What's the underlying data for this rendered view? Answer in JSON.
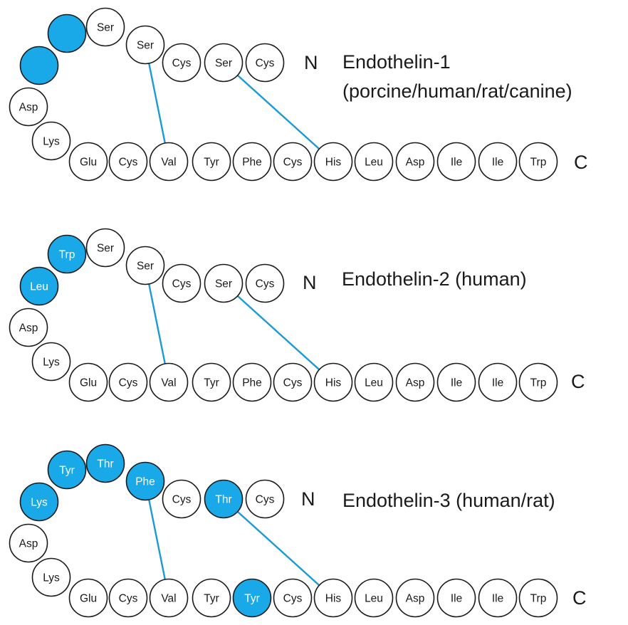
{
  "colors": {
    "highlight": "#19a8e8",
    "normal_fill": "#ffffff",
    "outline": "#1a1a1a",
    "disulfide_bond": "#1b9ad6",
    "text_on_highlight": "#ffffff",
    "text_normal": "#1a1a1a"
  },
  "peptides": [
    {
      "title_lines": [
        "Endothelin-1",
        "(porcine/human/rat/canine)"
      ],
      "n_terminus": "N",
      "c_terminus": "C",
      "residues": [
        {
          "label": "Cys",
          "highlight": false
        },
        {
          "label": "Ser",
          "highlight": false
        },
        {
          "label": "Cys",
          "highlight": false
        },
        {
          "label": "Ser",
          "highlight": false
        },
        {
          "label": "Ser",
          "highlight": false
        },
        {
          "label": "",
          "highlight": true
        },
        {
          "label": "",
          "highlight": true
        },
        {
          "label": "Asp",
          "highlight": false
        },
        {
          "label": "Lys",
          "highlight": false
        },
        {
          "label": "Glu",
          "highlight": false
        },
        {
          "label": "Cys",
          "highlight": false
        },
        {
          "label": "Val",
          "highlight": false
        },
        {
          "label": "Tyr",
          "highlight": false
        },
        {
          "label": "Phe",
          "highlight": false
        },
        {
          "label": "Cys",
          "highlight": false
        },
        {
          "label": "His",
          "highlight": false
        },
        {
          "label": "Leu",
          "highlight": false
        },
        {
          "label": "Asp",
          "highlight": false
        },
        {
          "label": "Ile",
          "highlight": false
        },
        {
          "label": "Ile",
          "highlight": false
        },
        {
          "label": "Trp",
          "highlight": false
        }
      ],
      "disulfide_bonds": [
        [
          1,
          15
        ],
        [
          3,
          11
        ]
      ]
    },
    {
      "title_lines": [
        "Endothelin-2 (human)"
      ],
      "n_terminus": "N",
      "c_terminus": "C",
      "residues": [
        {
          "label": "Cys",
          "highlight": false
        },
        {
          "label": "Ser",
          "highlight": false
        },
        {
          "label": "Cys",
          "highlight": false
        },
        {
          "label": "Ser",
          "highlight": false
        },
        {
          "label": "Ser",
          "highlight": false
        },
        {
          "label": "Trp",
          "highlight": true
        },
        {
          "label": "Leu",
          "highlight": true
        },
        {
          "label": "Asp",
          "highlight": false
        },
        {
          "label": "Lys",
          "highlight": false
        },
        {
          "label": "Glu",
          "highlight": false
        },
        {
          "label": "Cys",
          "highlight": false
        },
        {
          "label": "Val",
          "highlight": false
        },
        {
          "label": "Tyr",
          "highlight": false
        },
        {
          "label": "Phe",
          "highlight": false
        },
        {
          "label": "Cys",
          "highlight": false
        },
        {
          "label": "His",
          "highlight": false
        },
        {
          "label": "Leu",
          "highlight": false
        },
        {
          "label": "Asp",
          "highlight": false
        },
        {
          "label": "Ile",
          "highlight": false
        },
        {
          "label": "Ile",
          "highlight": false
        },
        {
          "label": "Trp",
          "highlight": false
        }
      ],
      "disulfide_bonds": [
        [
          1,
          15
        ],
        [
          3,
          11
        ]
      ]
    },
    {
      "title_lines": [
        "Endothelin-3 (human/rat)"
      ],
      "n_terminus": "N",
      "c_terminus": "C",
      "residues": [
        {
          "label": "Cys",
          "highlight": false
        },
        {
          "label": "Thr",
          "highlight": true
        },
        {
          "label": "Cys",
          "highlight": false
        },
        {
          "label": "Phe",
          "highlight": true
        },
        {
          "label": "Thr",
          "highlight": true
        },
        {
          "label": "Tyr",
          "highlight": true
        },
        {
          "label": "Lys",
          "highlight": true
        },
        {
          "label": "Asp",
          "highlight": false
        },
        {
          "label": "Lys",
          "highlight": false
        },
        {
          "label": "Glu",
          "highlight": false
        },
        {
          "label": "Cys",
          "highlight": false
        },
        {
          "label": "Val",
          "highlight": false
        },
        {
          "label": "Tyr",
          "highlight": false
        },
        {
          "label": "Tyr",
          "highlight": true
        },
        {
          "label": "Cys",
          "highlight": false
        },
        {
          "label": "His",
          "highlight": false
        },
        {
          "label": "Leu",
          "highlight": false
        },
        {
          "label": "Asp",
          "highlight": false
        },
        {
          "label": "Ile",
          "highlight": false
        },
        {
          "label": "Ile",
          "highlight": false
        },
        {
          "label": "Trp",
          "highlight": false
        }
      ],
      "disulfide_bonds": [
        [
          1,
          15
        ],
        [
          3,
          11
        ]
      ]
    }
  ]
}
